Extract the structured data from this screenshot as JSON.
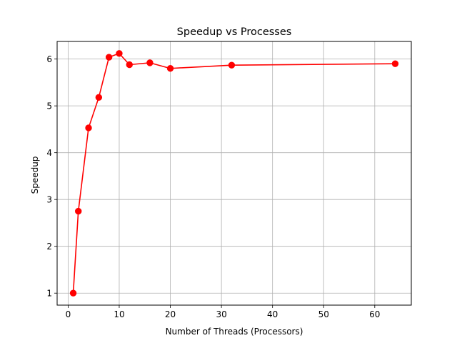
{
  "chart_data": {
    "type": "line",
    "title": "Speedup vs Processes",
    "xlabel": "Number of Threads (Processors)",
    "ylabel": "Speedup",
    "xlim": [
      -2.15,
      67.15
    ],
    "ylim": [
      0.744,
      6.376
    ],
    "xticks": [
      0,
      10,
      20,
      30,
      40,
      50,
      60
    ],
    "yticks": [
      1,
      2,
      3,
      4,
      5,
      6
    ],
    "grid": true,
    "legend": "none",
    "series": [
      {
        "color": "#ff0000",
        "marker": "circle",
        "x": [
          1,
          2,
          4,
          6,
          8,
          10,
          12,
          16,
          20,
          32,
          64
        ],
        "y": [
          1.0,
          2.75,
          4.53,
          5.18,
          6.04,
          6.12,
          5.88,
          5.92,
          5.8,
          5.87,
          5.9
        ]
      }
    ]
  }
}
